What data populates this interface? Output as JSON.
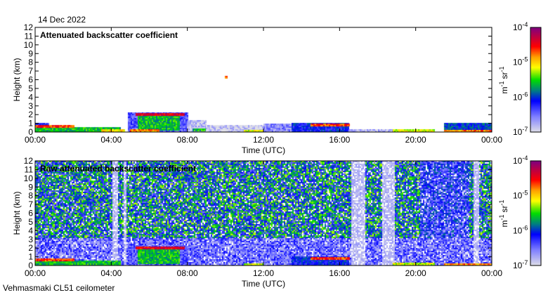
{
  "date_label": "14 Dec 2022",
  "footer": "Vehmasmaki CL51 ceilometer",
  "chart_data": [
    {
      "type": "heatmap",
      "title": "Attenuated backscatter coefficient",
      "xlabel": "Time (UTC)",
      "ylabel": "Height (km)",
      "xlim_hours": [
        0,
        24
      ],
      "ylim": [
        0,
        12
      ],
      "xticks": [
        "00:00",
        "04:00",
        "08:00",
        "12:00",
        "16:00",
        "20:00",
        "00:00"
      ],
      "yticks": [
        "0",
        "1",
        "2",
        "3",
        "4",
        "5",
        "6",
        "7",
        "8",
        "9",
        "10",
        "11",
        "12"
      ],
      "colorbar": {
        "scale": "log",
        "range": [
          1e-07,
          0.0001
        ],
        "ticks": [
          {
            "base": "10",
            "exp": "-4"
          },
          {
            "base": "10",
            "exp": "-5"
          },
          {
            "base": "10",
            "exp": "-6"
          },
          {
            "base": "10",
            "exp": "-7"
          }
        ],
        "unit": {
          "m": "m",
          "m_exp": "-1",
          "sr": "sr",
          "sr_exp": "-1"
        }
      },
      "noise": false,
      "features": [
        {
          "t0": 0,
          "t1": 0.7,
          "z0": 0,
          "z1": 1.0,
          "log10": -6.2
        },
        {
          "t0": 0,
          "t1": 4.5,
          "z0": 0,
          "z1": 0.5,
          "log10": -5.6
        },
        {
          "t0": 0,
          "t1": 2.0,
          "z0": 0.6,
          "z1": 0.75,
          "log10": -4.6
        },
        {
          "t0": 3.5,
          "t1": 4.7,
          "z0": 0,
          "z1": 0.3,
          "log10": -5.0
        },
        {
          "t0": 4.9,
          "t1": 8.0,
          "z0": 0,
          "z1": 2.2,
          "log10": -6.4
        },
        {
          "t0": 5.4,
          "t1": 7.6,
          "z0": 0.2,
          "z1": 1.9,
          "log10": -5.6
        },
        {
          "t0": 5.0,
          "t1": 6.5,
          "z0": 0,
          "z1": 0.3,
          "log10": -4.8
        },
        {
          "t0": 5.3,
          "t1": 7.8,
          "z0": 2.0,
          "z1": 2.15,
          "log10": -4.4
        },
        {
          "t0": 8.0,
          "t1": 9.0,
          "z0": 0,
          "z1": 1.3,
          "log10": -6.8
        },
        {
          "t0": 8.3,
          "t1": 9.0,
          "z0": 0.1,
          "z1": 0.4,
          "log10": -5.6
        },
        {
          "t0": 9.0,
          "t1": 12.0,
          "z0": 0,
          "z1": 0.8,
          "log10": -6.9
        },
        {
          "t0": 11.0,
          "t1": 12.0,
          "z0": 0,
          "z1": 0.2,
          "log10": -5.2
        },
        {
          "t0": 12.0,
          "t1": 13.5,
          "z0": 0,
          "z1": 0.9,
          "log10": -6.6
        },
        {
          "t0": 13.5,
          "t1": 16.5,
          "z0": 0,
          "z1": 1.0,
          "log10": -6.1
        },
        {
          "t0": 14.5,
          "t1": 16.5,
          "z0": 0.8,
          "z1": 0.95,
          "log10": -4.6
        },
        {
          "t0": 16.5,
          "t1": 18.8,
          "z0": 0,
          "z1": 0.3,
          "log10": -6.8
        },
        {
          "t0": 18.8,
          "t1": 21.0,
          "z0": 0,
          "z1": 0.25,
          "log10": -5.2
        },
        {
          "t0": 21.5,
          "t1": 24.0,
          "z0": 0,
          "z1": 1.0,
          "log10": -6.0
        },
        {
          "t0": 21.5,
          "t1": 24.0,
          "z0": 0,
          "z1": 0.2,
          "log10": -4.8
        },
        {
          "t0": 10.0,
          "t1": 10.08,
          "z0": 6.25,
          "z1": 6.4,
          "log10": -4.8
        }
      ]
    },
    {
      "type": "heatmap",
      "title": "Raw attenuated backscatter coefficient",
      "xlabel": "Time (UTC)",
      "ylabel": "Height (km)",
      "xlim_hours": [
        0,
        24
      ],
      "ylim": [
        0,
        12
      ],
      "xticks": [
        "00:00",
        "04:00",
        "08:00",
        "12:00",
        "16:00",
        "20:00",
        "00:00"
      ],
      "yticks": [
        "0",
        "1",
        "2",
        "3",
        "4",
        "5",
        "6",
        "7",
        "8",
        "9",
        "10",
        "11",
        "12"
      ],
      "colorbar": {
        "scale": "log",
        "range": [
          1e-07,
          0.0001
        ],
        "ticks": [
          {
            "base": "10",
            "exp": "-4"
          },
          {
            "base": "10",
            "exp": "-5"
          },
          {
            "base": "10",
            "exp": "-6"
          },
          {
            "base": "10",
            "exp": "-7"
          }
        ],
        "unit": {
          "m": "m",
          "m_exp": "-1",
          "sr": "sr",
          "sr_exp": "-1"
        }
      },
      "noise": true,
      "gaps_hours": [
        [
          4.0,
          4.3
        ],
        [
          4.6,
          4.8
        ],
        [
          16.6,
          17.3
        ],
        [
          18.2,
          18.9
        ],
        [
          23.0,
          23.3
        ]
      ],
      "features": [
        {
          "t0": 0,
          "t1": 4.5,
          "z0": 0,
          "z1": 0.5,
          "log10": -5.6
        },
        {
          "t0": 0,
          "t1": 2.0,
          "z0": 0.6,
          "z1": 0.75,
          "log10": -4.6
        },
        {
          "t0": 4.9,
          "t1": 8.0,
          "z0": 0,
          "z1": 2.2,
          "log10": -6.4
        },
        {
          "t0": 5.4,
          "t1": 7.6,
          "z0": 0.2,
          "z1": 1.9,
          "log10": -5.6
        },
        {
          "t0": 5.3,
          "t1": 7.8,
          "z0": 2.0,
          "z1": 2.15,
          "log10": -4.4
        },
        {
          "t0": 11.0,
          "t1": 12.0,
          "z0": 0,
          "z1": 0.2,
          "log10": -5.2
        },
        {
          "t0": 13.5,
          "t1": 16.5,
          "z0": 0,
          "z1": 1.0,
          "log10": -6.1
        },
        {
          "t0": 14.5,
          "t1": 16.5,
          "z0": 0.8,
          "z1": 0.95,
          "log10": -4.6
        },
        {
          "t0": 18.8,
          "t1": 21.0,
          "z0": 0,
          "z1": 0.25,
          "log10": -5.2
        },
        {
          "t0": 21.5,
          "t1": 24.0,
          "z0": 0,
          "z1": 0.2,
          "log10": -4.8
        }
      ]
    }
  ]
}
